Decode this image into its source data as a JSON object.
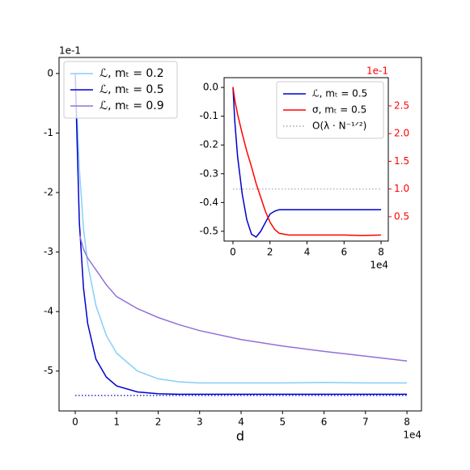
{
  "chart_data": [
    {
      "type": "line",
      "x_label": "d",
      "x_offset": "1e4",
      "y_offset": "1e-1",
      "xlim": [
        -0.39,
        8.35
      ],
      "xticks": [
        0,
        1,
        2,
        3,
        4,
        5,
        6,
        7,
        8
      ],
      "ylim": [
        -5.67,
        0.27
      ],
      "yticks": [
        0,
        -1,
        -2,
        -3,
        -4,
        -5
      ],
      "legend": "upper left",
      "series": [
        {
          "name": "ℒ, mₜ = 0.2",
          "color": "#87cefa",
          "x": [
            0,
            0.1,
            0.2,
            0.3,
            0.5,
            0.75,
            1,
            1.5,
            2,
            2.5,
            3,
            4,
            5,
            6,
            7,
            8
          ],
          "values": [
            0,
            -1.6,
            -2.6,
            -3.2,
            -3.9,
            -4.4,
            -4.7,
            -5.0,
            -5.13,
            -5.18,
            -5.2,
            -5.2,
            -5.2,
            -5.19,
            -5.2,
            -5.2
          ]
        },
        {
          "name": "ℒ, mₜ = 0.5",
          "color": "#0000cd",
          "x": [
            0,
            0.1,
            0.2,
            0.3,
            0.5,
            0.75,
            1,
            1.5,
            2,
            2.5,
            3,
            4,
            5,
            6,
            7,
            8
          ],
          "values": [
            0,
            -2.5,
            -3.6,
            -4.2,
            -4.8,
            -5.1,
            -5.25,
            -5.35,
            -5.38,
            -5.39,
            -5.39,
            -5.39,
            -5.39,
            -5.39,
            -5.39,
            -5.39
          ]
        },
        {
          "name": "ℒ, mₜ = 0.9",
          "color": "#9370db",
          "x": [
            0.1,
            0.2,
            0.3,
            0.5,
            0.75,
            1,
            1.5,
            2,
            2.5,
            3,
            4,
            5,
            6,
            7,
            8
          ],
          "values": [
            -2.7,
            -2.95,
            -3.1,
            -3.3,
            -3.55,
            -3.75,
            -3.95,
            -4.1,
            -4.22,
            -4.32,
            -4.47,
            -4.58,
            -4.67,
            -4.75,
            -4.83
          ]
        },
        {
          "color": "#0000cd",
          "dash": "dotted",
          "x": [
            0,
            8
          ],
          "values": [
            -5.41,
            -5.41
          ]
        }
      ]
    },
    {
      "type": "line",
      "x_offset": "1e4",
      "y2_offset": "1e-1",
      "y2_color": "#ff0000",
      "xlim": [
        -0.48,
        8.39
      ],
      "xticks": [
        0,
        2,
        4,
        6,
        8
      ],
      "ylim": [
        -0.534,
        0.034
      ],
      "yticks": [
        {
          "value": 0,
          "label": "0.0"
        },
        -0.1,
        -0.2,
        -0.3,
        -0.4,
        -0.5
      ],
      "y2lim": [
        0.06,
        3.01
      ],
      "y2ticks": [
        0.5,
        {
          "value": 1,
          "label": "1.0"
        },
        1.5,
        {
          "value": 2,
          "label": "2.0"
        },
        2.5
      ],
      "legend": "upper right",
      "series": [
        {
          "name": "ℒ, mₜ = 0.5",
          "color": "#0000cd",
          "x": [
            0,
            0.1,
            0.25,
            0.5,
            0.75,
            1,
            1.25,
            1.5,
            1.75,
            2,
            2.25,
            2.5,
            3,
            4,
            5,
            6,
            7,
            8
          ],
          "values": [
            0,
            -0.12,
            -0.24,
            -0.37,
            -0.46,
            -0.51,
            -0.52,
            -0.5,
            -0.47,
            -0.44,
            -0.43,
            -0.425,
            -0.425,
            -0.425,
            -0.425,
            -0.425,
            -0.425,
            -0.425
          ]
        },
        {
          "name": "σ, mₜ = 0.5",
          "color": "#ff0000",
          "axis": "y2",
          "x": [
            0,
            0.1,
            0.25,
            0.5,
            0.75,
            1,
            1.25,
            1.5,
            1.75,
            2,
            2.25,
            2.5,
            3,
            4,
            5,
            6,
            7,
            8
          ],
          "values": [
            2.84,
            2.6,
            2.35,
            2.0,
            1.68,
            1.4,
            1.1,
            0.85,
            0.6,
            0.4,
            0.27,
            0.2,
            0.17,
            0.17,
            0.17,
            0.17,
            0.16,
            0.17
          ]
        },
        {
          "name": "O(λ · N⁻¹ᐟ²)",
          "color": "#aaaaaa",
          "dash": "dotted",
          "axis": "y2",
          "x": [
            0,
            8
          ],
          "values": [
            1,
            1
          ]
        }
      ]
    }
  ]
}
